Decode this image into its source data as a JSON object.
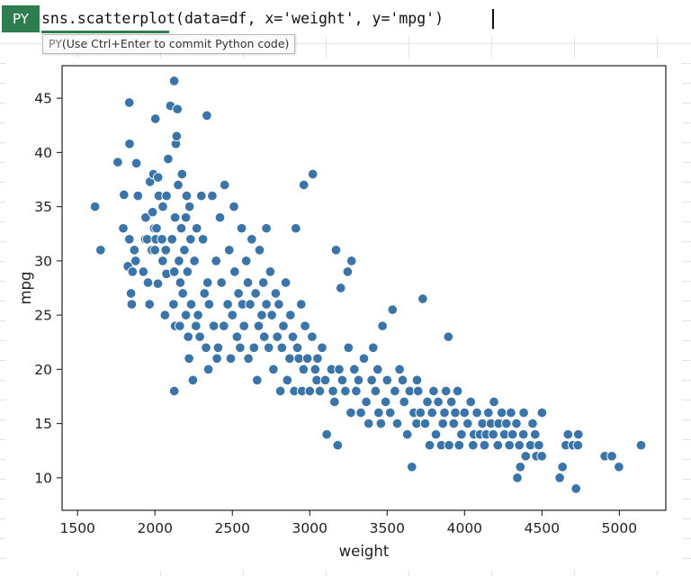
{
  "formula_bar": {
    "badge": "PY",
    "code": "sns.scatterplot(data=df, x='weight', y='mpg')"
  },
  "hint": {
    "prefix": "PY",
    "text": "(Use Ctrl+Enter to commit Python code)"
  },
  "colors": {
    "marker": "#3a74a8",
    "marker_edge": "#ffffff",
    "badge": "#2e7d4f"
  },
  "chart_data": {
    "type": "scatter",
    "xlabel": "weight",
    "ylabel": "mpg",
    "xlim": [
      1400,
      5300
    ],
    "ylim": [
      7,
      48
    ],
    "xticks": [
      1500,
      2000,
      2500,
      3000,
      3500,
      4000,
      4500,
      5000
    ],
    "yticks": [
      10,
      15,
      20,
      25,
      30,
      35,
      40,
      45
    ],
    "grid": false,
    "points": [
      [
        1613,
        35
      ],
      [
        1649,
        31
      ],
      [
        1760,
        39.1
      ],
      [
        1795,
        33
      ],
      [
        1800,
        36.1
      ],
      [
        1825,
        29.5
      ],
      [
        1834,
        44.6
      ],
      [
        1835,
        32
      ],
      [
        1836,
        40.8
      ],
      [
        1845,
        27
      ],
      [
        1850,
        26
      ],
      [
        1855,
        29
      ],
      [
        1867,
        31
      ],
      [
        1875,
        30
      ],
      [
        1880,
        39
      ],
      [
        1890,
        36
      ],
      [
        1925,
        29
      ],
      [
        1937,
        32
      ],
      [
        1940,
        34
      ],
      [
        1950,
        32
      ],
      [
        1955,
        28
      ],
      [
        1965,
        26
      ],
      [
        1968,
        37.3
      ],
      [
        1975,
        31
      ],
      [
        1980,
        31
      ],
      [
        1985,
        34.5
      ],
      [
        1990,
        38
      ],
      [
        1995,
        33
      ],
      [
        2000,
        31
      ],
      [
        2003,
        43.1
      ],
      [
        2005,
        32
      ],
      [
        2010,
        33
      ],
      [
        2019,
        27.9
      ],
      [
        2020,
        37.7
      ],
      [
        2025,
        36
      ],
      [
        2045,
        32
      ],
      [
        2050,
        30
      ],
      [
        2051,
        35
      ],
      [
        2065,
        25
      ],
      [
        2070,
        31
      ],
      [
        2074,
        28.8
      ],
      [
        2075,
        36
      ],
      [
        2085,
        39.4
      ],
      [
        2100,
        44.3
      ],
      [
        2110,
        32
      ],
      [
        2120,
        26
      ],
      [
        2130,
        24
      ],
      [
        2124,
        46.6
      ],
      [
        2125,
        29
      ],
      [
        2130,
        34
      ],
      [
        2125,
        18
      ],
      [
        2135,
        40.8
      ],
      [
        2140,
        41.5
      ],
      [
        2145,
        44
      ],
      [
        2150,
        37
      ],
      [
        2155,
        30
      ],
      [
        2160,
        24
      ],
      [
        2164,
        28
      ],
      [
        2170,
        33
      ],
      [
        2175,
        38
      ],
      [
        2180,
        27
      ],
      [
        2190,
        31
      ],
      [
        2200,
        34
      ],
      [
        2200,
        25
      ],
      [
        2205,
        36
      ],
      [
        2210,
        29
      ],
      [
        2215,
        23
      ],
      [
        2220,
        21
      ],
      [
        2223,
        35
      ],
      [
        2230,
        32
      ],
      [
        2234,
        26
      ],
      [
        2245,
        19
      ],
      [
        2255,
        30
      ],
      [
        2265,
        24
      ],
      [
        2270,
        33
      ],
      [
        2278,
        25
      ],
      [
        2290,
        23
      ],
      [
        2300,
        36
      ],
      [
        2310,
        32
      ],
      [
        2320,
        27
      ],
      [
        2330,
        22
      ],
      [
        2335,
        43.4
      ],
      [
        2340,
        28
      ],
      [
        2345,
        20
      ],
      [
        2350,
        26
      ],
      [
        2370,
        36
      ],
      [
        2380,
        24
      ],
      [
        2395,
        30
      ],
      [
        2400,
        21
      ],
      [
        2408,
        22
      ],
      [
        2420,
        34
      ],
      [
        2430,
        28
      ],
      [
        2445,
        24
      ],
      [
        2450,
        37
      ],
      [
        2470,
        26
      ],
      [
        2480,
        31
      ],
      [
        2490,
        21
      ],
      [
        2500,
        25
      ],
      [
        2510,
        35
      ],
      [
        2515,
        29
      ],
      [
        2530,
        23
      ],
      [
        2540,
        27
      ],
      [
        2550,
        22
      ],
      [
        2560,
        33
      ],
      [
        2565,
        26
      ],
      [
        2575,
        24
      ],
      [
        2590,
        30
      ],
      [
        2600,
        28
      ],
      [
        2604,
        21
      ],
      [
        2615,
        26
      ],
      [
        2625,
        32
      ],
      [
        2640,
        22
      ],
      [
        2650,
        27
      ],
      [
        2660,
        19
      ],
      [
        2670,
        24
      ],
      [
        2676,
        31
      ],
      [
        2690,
        25
      ],
      [
        2700,
        28
      ],
      [
        2706,
        23
      ],
      [
        2720,
        26
      ],
      [
        2720,
        33
      ],
      [
        2735,
        22
      ],
      [
        2745,
        29
      ],
      [
        2755,
        25
      ],
      [
        2765,
        20
      ],
      [
        2780,
        27
      ],
      [
        2790,
        23
      ],
      [
        2800,
        26
      ],
      [
        2810,
        18
      ],
      [
        2820,
        22
      ],
      [
        2830,
        24
      ],
      [
        2845,
        28
      ],
      [
        2855,
        19
      ],
      [
        2870,
        21
      ],
      [
        2875,
        25
      ],
      [
        2890,
        23
      ],
      [
        2900,
        18
      ],
      [
        2910,
        33
      ],
      [
        2920,
        22
      ],
      [
        2930,
        21
      ],
      [
        2945,
        26
      ],
      [
        2950,
        18
      ],
      [
        2960,
        20
      ],
      [
        2962,
        37
      ],
      [
        2970,
        24
      ],
      [
        2985,
        21
      ],
      [
        3000,
        18
      ],
      [
        3015,
        23
      ],
      [
        3020,
        38
      ],
      [
        3035,
        20
      ],
      [
        3045,
        19
      ],
      [
        3050,
        21
      ],
      [
        3065,
        18
      ],
      [
        3080,
        22
      ],
      [
        3100,
        19
      ],
      [
        3110,
        14
      ],
      [
        3140,
        20
      ],
      [
        3150,
        18
      ],
      [
        3160,
        17
      ],
      [
        3170,
        31
      ],
      [
        3180,
        13
      ],
      [
        3190,
        20
      ],
      [
        3200,
        27.5
      ],
      [
        3210,
        19
      ],
      [
        3230,
        18
      ],
      [
        3245,
        29
      ],
      [
        3250,
        22
      ],
      [
        3265,
        16
      ],
      [
        3270,
        30
      ],
      [
        3288,
        20
      ],
      [
        3300,
        18
      ],
      [
        3315,
        19
      ],
      [
        3330,
        16
      ],
      [
        3350,
        21
      ],
      [
        3365,
        17
      ],
      [
        3380,
        15
      ],
      [
        3400,
        19
      ],
      [
        3410,
        22
      ],
      [
        3425,
        18
      ],
      [
        3439,
        20
      ],
      [
        3445,
        16
      ],
      [
        3460,
        15
      ],
      [
        3470,
        24
      ],
      [
        3490,
        17
      ],
      [
        3500,
        19
      ],
      [
        3520,
        16
      ],
      [
        3535,
        25.5
      ],
      [
        3550,
        18
      ],
      [
        3565,
        15
      ],
      [
        3580,
        20
      ],
      [
        3600,
        19
      ],
      [
        3610,
        17
      ],
      [
        3630,
        14
      ],
      [
        3645,
        18
      ],
      [
        3660,
        11
      ],
      [
        3672,
        16
      ],
      [
        3690,
        15
      ],
      [
        3693,
        19
      ],
      [
        3700,
        18
      ],
      [
        3715,
        16
      ],
      [
        3730,
        26.5
      ],
      [
        3745,
        15
      ],
      [
        3760,
        17
      ],
      [
        3775,
        13
      ],
      [
        3790,
        16
      ],
      [
        3800,
        18
      ],
      [
        3815,
        14
      ],
      [
        3830,
        17
      ],
      [
        3850,
        13
      ],
      [
        3860,
        15
      ],
      [
        3870,
        16
      ],
      [
        3880,
        18
      ],
      [
        3895,
        23
      ],
      [
        3900,
        13
      ],
      [
        3915,
        17
      ],
      [
        3930,
        15
      ],
      [
        3940,
        16
      ],
      [
        3955,
        18
      ],
      [
        3965,
        13
      ],
      [
        3980,
        14
      ],
      [
        4000,
        16
      ],
      [
        4020,
        15
      ],
      [
        4040,
        17
      ],
      [
        4055,
        13
      ],
      [
        4060,
        14
      ],
      [
        4080,
        16
      ],
      [
        4100,
        14
      ],
      [
        4115,
        15
      ],
      [
        4129,
        13
      ],
      [
        4140,
        14
      ],
      [
        4154,
        16
      ],
      [
        4170,
        15
      ],
      [
        4185,
        14
      ],
      [
        4190,
        17
      ],
      [
        4215,
        13
      ],
      [
        4220,
        15
      ],
      [
        4240,
        16
      ],
      [
        4257,
        14
      ],
      [
        4270,
        15
      ],
      [
        4290,
        13
      ],
      [
        4300,
        16
      ],
      [
        4310,
        14
      ],
      [
        4335,
        15
      ],
      [
        4341,
        10
      ],
      [
        4354,
        13
      ],
      [
        4360,
        11
      ],
      [
        4380,
        14
      ],
      [
        4382,
        16
      ],
      [
        4395,
        12
      ],
      [
        4425,
        13
      ],
      [
        4440,
        15
      ],
      [
        4456,
        14
      ],
      [
        4464,
        12
      ],
      [
        4480,
        13
      ],
      [
        4499,
        12
      ],
      [
        4500,
        16
      ],
      [
        4615,
        10
      ],
      [
        4633,
        11
      ],
      [
        4654,
        13
      ],
      [
        4668,
        14
      ],
      [
        4700,
        13
      ],
      [
        4720,
        9
      ],
      [
        4732,
        13
      ],
      [
        4735,
        14
      ],
      [
        4906,
        12
      ],
      [
        4951,
        12
      ],
      [
        4997,
        11
      ],
      [
        5140,
        13
      ]
    ]
  }
}
